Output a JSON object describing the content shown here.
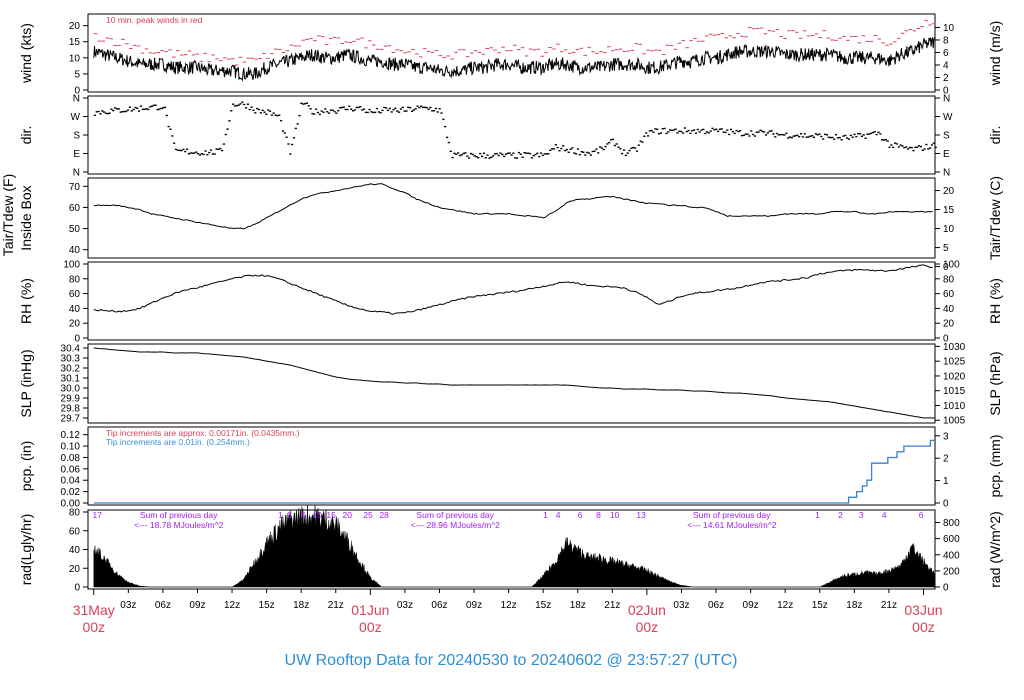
{
  "title": "UW Rooftop Data for 20240530  to  20240602 @ 23:57:27  (UTC)",
  "colors": {
    "title": "#2b8fd6",
    "date_labels": "#d9405a",
    "peak_wind": "#d9405a",
    "note_red": "#d9405a",
    "note_blue": "#3a8fd8",
    "radiation_labels": "#a020f0",
    "data": "#000000",
    "precip_blue": "#3a7fd0"
  },
  "time_axis": {
    "hour_labels": [
      "03z",
      "06z",
      "09z",
      "12z",
      "15z",
      "18z",
      "21z",
      "03z",
      "06z",
      "09z",
      "12z",
      "15z",
      "18z",
      "21z",
      "03z",
      "06z",
      "09z",
      "12z",
      "15z",
      "18z",
      "21z"
    ],
    "hour_offsets": [
      3,
      6,
      9,
      12,
      15,
      18,
      21,
      27,
      30,
      33,
      36,
      39,
      42,
      45,
      51,
      54,
      57,
      60,
      63,
      66,
      69
    ],
    "day_labels": [
      {
        "offset": 0,
        "date": "31May",
        "time": "00z"
      },
      {
        "offset": 24,
        "date": "01Jun",
        "time": "00z"
      },
      {
        "offset": 48,
        "date": "02Jun",
        "time": "00z"
      },
      {
        "offset": 72,
        "date": "03Jun",
        "time": "00z"
      }
    ]
  },
  "panels": {
    "wind": {
      "left_label": "wind (kts)",
      "right_label": "wind (m/s)",
      "left_ticks": [
        "0",
        "5",
        "10",
        "15",
        "20"
      ],
      "right_ticks": [
        "0",
        "2",
        "4",
        "6",
        "8",
        "10"
      ],
      "note": "10 min. peak winds in red"
    },
    "dir": {
      "left_label": "dir.",
      "right_label": "dir.",
      "ticks": [
        "N",
        "E",
        "S",
        "W",
        "N"
      ]
    },
    "temp": {
      "left_label_1": "Tair/Tdew (F)",
      "left_label_2": "Inside Box",
      "right_label": "Tair/Tdew (C)",
      "left_ticks": [
        "40",
        "50",
        "60",
        "70"
      ],
      "right_ticks": [
        "0",
        "5",
        "10",
        "15",
        "20"
      ]
    },
    "rh": {
      "left_label": "RH (%)",
      "right_label": "RH (%)",
      "ticks": [
        "0",
        "20",
        "40",
        "60",
        "80",
        "100"
      ]
    },
    "slp": {
      "left_label": "SLP (inHg)",
      "right_label": "SLP (hPa)",
      "left_ticks": [
        "29.7",
        "29.8",
        "29.9",
        "30.0",
        "30.1",
        "30.2",
        "30.3",
        "30.4"
      ],
      "right_ticks": [
        "1005",
        "1010",
        "1015",
        "1020",
        "1025",
        "1030"
      ]
    },
    "pcp": {
      "left_label": "pcp. (in)",
      "right_label": "pcp. (mm)",
      "left_ticks": [
        "0.00",
        "0.02",
        "0.04",
        "0.06",
        "0.08",
        "0.10",
        "0.12"
      ],
      "right_ticks": [
        "0",
        "1",
        "2",
        "3"
      ],
      "note_red": "Tip increments are approx. 0.00171in. (0.0435mm.)",
      "note_blue": "Tip increments are 0.01in. (0.254mm.)"
    },
    "rad": {
      "left_label": "rad(Lgly/hr)",
      "right_label": "rad (W/m^2)",
      "left_ticks": [
        "0",
        "20",
        "40",
        "60",
        "80"
      ],
      "right_ticks": [
        "0",
        "200",
        "400",
        "600",
        "800"
      ],
      "sum_title": "Sum of previous day",
      "sums": [
        "<--- 18.78 MJoules/m^2",
        "<--- 28.96 MJoules/m^2",
        "<--- 14.61 MJoules/m^2"
      ],
      "hour_marks_top": [
        "17",
        "1",
        "3",
        "6",
        "10",
        "15",
        "20",
        "25",
        "28",
        "1",
        "4",
        "6",
        "8",
        "10",
        "13",
        "1",
        "2",
        "3",
        "4",
        "6"
      ]
    }
  },
  "chart_data": [
    {
      "type": "line",
      "title": "",
      "x_unit": "hours since 31May 00z",
      "xlim": [
        -0.5,
        73
      ],
      "ylabel": "wind (kts)",
      "ylim": [
        0,
        23
      ],
      "series": [
        {
          "values_hourly": [
            12,
            11,
            10,
            9,
            8,
            8,
            8,
            7,
            7,
            7,
            6,
            6,
            6,
            5,
            5,
            7,
            8,
            9,
            10,
            11,
            10,
            10,
            11,
            10,
            9,
            9,
            8,
            8,
            7,
            7,
            6,
            6,
            6,
            7,
            7,
            8,
            8,
            7,
            7,
            7,
            8,
            8,
            7,
            7,
            7,
            8,
            8,
            8,
            7,
            7,
            8,
            9,
            9,
            10,
            10,
            11,
            12,
            12,
            12,
            12,
            11,
            11,
            11,
            11,
            11,
            10,
            10,
            10,
            10,
            9,
            11,
            12,
            14,
            15
          ]
        },
        {
          "name": "10 min. peak winds in red",
          "values_hourly": [
            17,
            16,
            15,
            14,
            13,
            12,
            12,
            11,
            11,
            10,
            10,
            10,
            9,
            9,
            9,
            11,
            12,
            13,
            15,
            16,
            15,
            15,
            16,
            15,
            14,
            14,
            13,
            12,
            12,
            11,
            11,
            11,
            11,
            12,
            12,
            13,
            13,
            12,
            12,
            12,
            13,
            13,
            12,
            12,
            12,
            13,
            13,
            13,
            12,
            12,
            13,
            14,
            15,
            16,
            16,
            17,
            18,
            18,
            18,
            18,
            17,
            17,
            17,
            17,
            17,
            16,
            16,
            16,
            16,
            15,
            17,
            19,
            21,
            22
          ]
        }
      ]
    },
    {
      "type": "scatter",
      "ylabel": "dir.",
      "y_unit": "degrees",
      "ylim": [
        0,
        360
      ],
      "points_hourly": [
        290,
        295,
        300,
        305,
        310,
        315,
        320,
        100,
        100,
        95,
        95,
        100,
        330,
        330,
        300,
        290,
        270,
        90,
        340,
        290,
        300,
        300,
        310,
        310,
        290,
        300,
        300,
        300,
        310,
        310,
        300,
        80,
        80,
        80,
        80,
        80,
        80,
        80,
        80,
        80,
        120,
        110,
        100,
        90,
        110,
        150,
        90,
        110,
        190,
        200,
        200,
        200,
        200,
        200,
        200,
        195,
        190,
        190,
        190,
        185,
        180,
        180,
        175,
        175,
        170,
        165,
        170,
        180,
        190,
        130,
        120,
        110,
        120,
        130
      ]
    },
    {
      "type": "line",
      "ylabel": "Tair/Tdew (F)",
      "ylim": [
        37,
        73
      ],
      "series": [
        {
          "values_hourly": [
            61,
            61,
            61,
            60,
            59,
            57,
            56,
            55,
            54,
            53,
            52,
            51,
            50,
            50,
            52,
            55,
            58,
            61,
            64,
            66,
            67,
            68,
            69,
            70,
            71,
            71,
            69,
            67,
            64,
            62,
            60,
            59,
            58,
            57,
            57,
            57,
            57,
            56,
            56,
            55,
            58,
            62,
            64,
            64,
            65,
            65,
            64,
            63,
            62,
            62,
            61,
            61,
            60,
            60,
            58,
            56,
            56,
            56,
            56,
            56,
            57,
            57,
            57,
            57,
            58,
            58,
            58,
            57,
            57,
            58,
            58,
            58,
            58,
            58
          ]
        }
      ]
    },
    {
      "type": "line",
      "ylabel": "RH (%)",
      "ylim": [
        0,
        100
      ],
      "series": [
        {
          "values_hourly": [
            38,
            37,
            36,
            37,
            40,
            47,
            54,
            60,
            65,
            68,
            72,
            76,
            80,
            83,
            85,
            84,
            80,
            74,
            68,
            62,
            56,
            50,
            44,
            40,
            36,
            35,
            33,
            34,
            37,
            41,
            45,
            49,
            53,
            56,
            58,
            60,
            62,
            64,
            67,
            70,
            73,
            76,
            74,
            71,
            70,
            69,
            68,
            62,
            55,
            45,
            50,
            57,
            60,
            62,
            64,
            66,
            68,
            72,
            75,
            77,
            78,
            80,
            82,
            87,
            89,
            91,
            92,
            92,
            91,
            91,
            93,
            96,
            98,
            95
          ]
        }
      ]
    },
    {
      "type": "line",
      "ylabel": "SLP (inHg)",
      "ylim": [
        29.67,
        30.42
      ],
      "series": [
        {
          "values_hourly": [
            30.4,
            30.39,
            30.38,
            30.37,
            30.36,
            30.36,
            30.36,
            30.35,
            30.35,
            30.35,
            30.34,
            30.33,
            30.32,
            30.31,
            30.29,
            30.27,
            30.25,
            30.23,
            30.2,
            30.17,
            30.14,
            30.11,
            30.09,
            30.08,
            30.07,
            30.06,
            30.06,
            30.05,
            30.05,
            30.04,
            30.04,
            30.03,
            30.03,
            30.03,
            30.03,
            30.03,
            30.03,
            30.03,
            30.03,
            30.03,
            30.03,
            30.03,
            30.02,
            30.01,
            30.0,
            30.0,
            29.99,
            29.99,
            29.99,
            29.98,
            29.98,
            29.98,
            29.97,
            29.97,
            29.96,
            29.95,
            29.95,
            29.94,
            29.93,
            29.92,
            29.9,
            29.89,
            29.88,
            29.87,
            29.86,
            29.84,
            29.82,
            29.8,
            29.78,
            29.76,
            29.74,
            29.72,
            29.7,
            29.7
          ]
        }
      ]
    },
    {
      "type": "line",
      "ylabel": "pcp. (in)",
      "ylim": [
        0,
        0.13
      ],
      "series": [
        {
          "name": "Tip increments are 0.01in. (0.254mm.)",
          "step_points": [
            [
              0,
              0
            ],
            [
              65.5,
              0
            ],
            [
              65.5,
              0.01
            ],
            [
              66.2,
              0.01
            ],
            [
              66.2,
              0.02
            ],
            [
              66.7,
              0.02
            ],
            [
              66.7,
              0.03
            ],
            [
              67.1,
              0.03
            ],
            [
              67.1,
              0.04
            ],
            [
              67.5,
              0.04
            ],
            [
              67.5,
              0.07
            ],
            [
              68.9,
              0.07
            ],
            [
              68.9,
              0.08
            ],
            [
              69.7,
              0.08
            ],
            [
              69.7,
              0.09
            ],
            [
              70.3,
              0.09
            ],
            [
              70.3,
              0.1
            ],
            [
              72.6,
              0.1
            ],
            [
              72.6,
              0.11
            ],
            [
              73,
              0.11
            ]
          ]
        }
      ]
    },
    {
      "type": "area",
      "ylabel": "rad(Lgly/hr)",
      "ylim": [
        0,
        80
      ],
      "series": [
        {
          "values_hourly": [
            43,
            30,
            15,
            5,
            1,
            0,
            0,
            0,
            0,
            0,
            0,
            0,
            0,
            8,
            28,
            48,
            64,
            73,
            77,
            78,
            75,
            68,
            52,
            30,
            10,
            0,
            0,
            0,
            0,
            0,
            0,
            0,
            0,
            0,
            0,
            0,
            0,
            0,
            0,
            12,
            27,
            48,
            40,
            32,
            32,
            28,
            25,
            22,
            18,
            12,
            6,
            2,
            0,
            0,
            0,
            0,
            0,
            0,
            0,
            0,
            0,
            0,
            0,
            0,
            6,
            12,
            14,
            16,
            14,
            18,
            23,
            44,
            28,
            14
          ]
        }
      ]
    }
  ]
}
